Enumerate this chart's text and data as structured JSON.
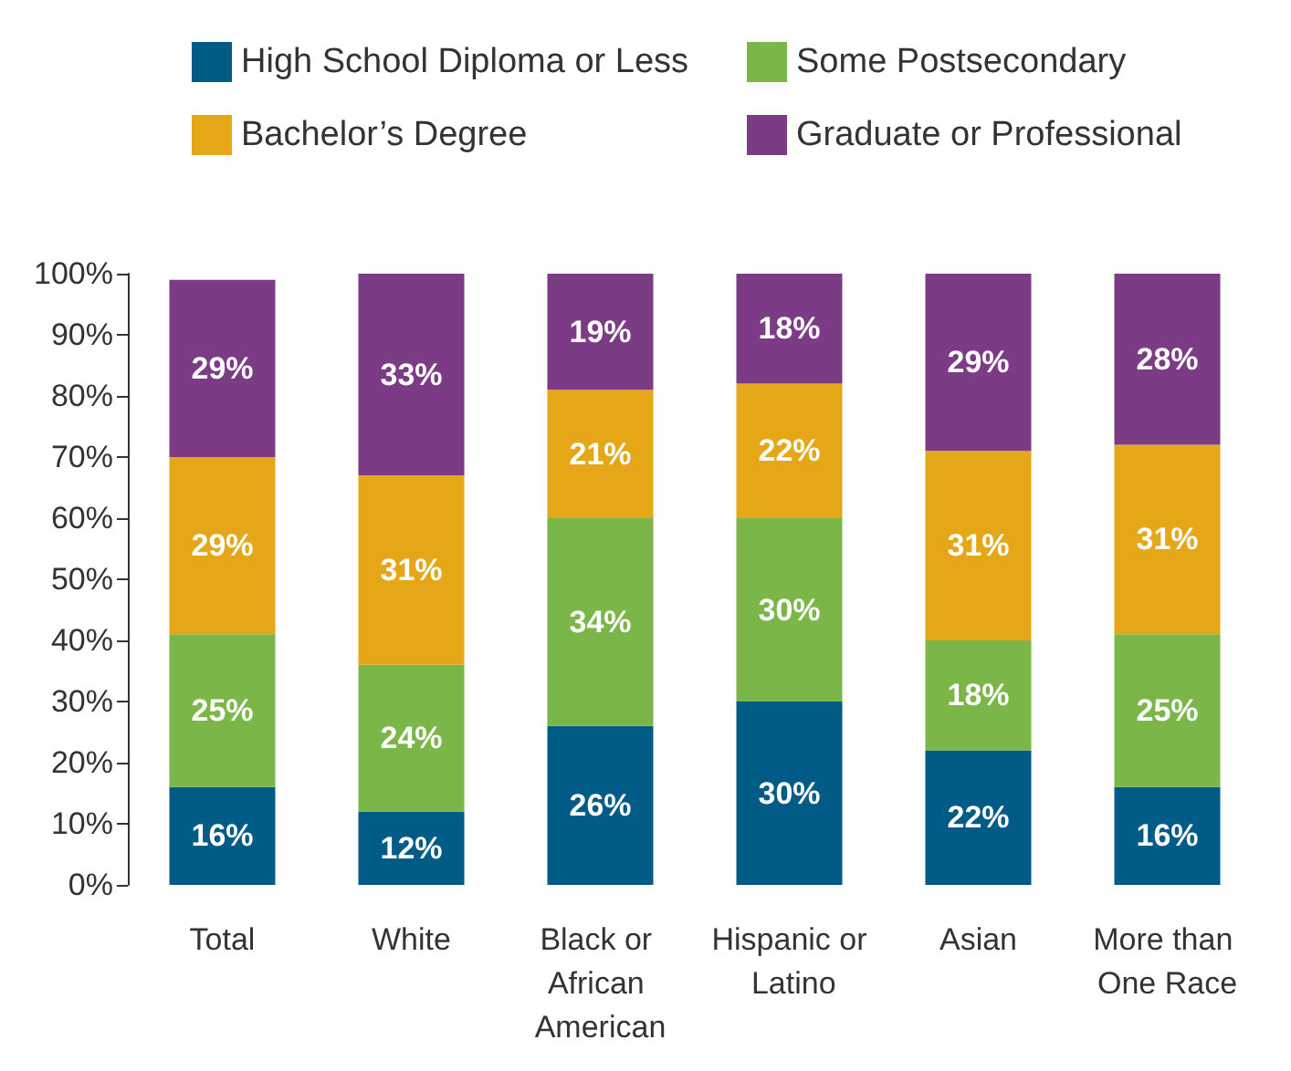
{
  "chart_data": {
    "type": "bar",
    "stacked": true,
    "legend": "top",
    "grid": false,
    "categories": [
      "Total",
      "White",
      "Black or African American",
      "Hispanic or Latino",
      "Asian",
      "More than One Race"
    ],
    "ylim": [
      0,
      100
    ],
    "yticks": [
      {
        "value": 0,
        "label": "0%"
      },
      {
        "value": 10,
        "label": "10%"
      },
      {
        "value": 20,
        "label": "20%"
      },
      {
        "value": 30,
        "label": "30%"
      },
      {
        "value": 40,
        "label": "40%"
      },
      {
        "value": 50,
        "label": "50%"
      },
      {
        "value": 60,
        "label": "60%"
      },
      {
        "value": 70,
        "label": "70%"
      },
      {
        "value": 80,
        "label": "80%"
      },
      {
        "value": 90,
        "label": "90%"
      },
      {
        "value": 100,
        "label": "100%"
      }
    ],
    "series": [
      {
        "name": "High School Diploma or Less",
        "color": "#005b86",
        "values": [
          16,
          12,
          26,
          30,
          22,
          16
        ],
        "value_labels": [
          "16%",
          "12%",
          "26%",
          "30%",
          "22%",
          "16%"
        ]
      },
      {
        "name": "Some Postsecondary",
        "color": "#7ab648",
        "values": [
          25,
          24,
          34,
          30,
          18,
          25
        ],
        "value_labels": [
          "25%",
          "24%",
          "34%",
          "30%",
          "18%",
          "25%"
        ]
      },
      {
        "name": "Bachelor’s Degree",
        "color": "#e5a718",
        "values": [
          29,
          31,
          21,
          22,
          31,
          31
        ],
        "value_labels": [
          "29%",
          "31%",
          "21%",
          "22%",
          "31%",
          "31%"
        ]
      },
      {
        "name": "Graduate or Professional",
        "color": "#7b3c85",
        "values": [
          29,
          33,
          19,
          18,
          29,
          28
        ],
        "value_labels": [
          "29%",
          "33%",
          "19%",
          "18%",
          "29%",
          "28%"
        ]
      }
    ]
  }
}
